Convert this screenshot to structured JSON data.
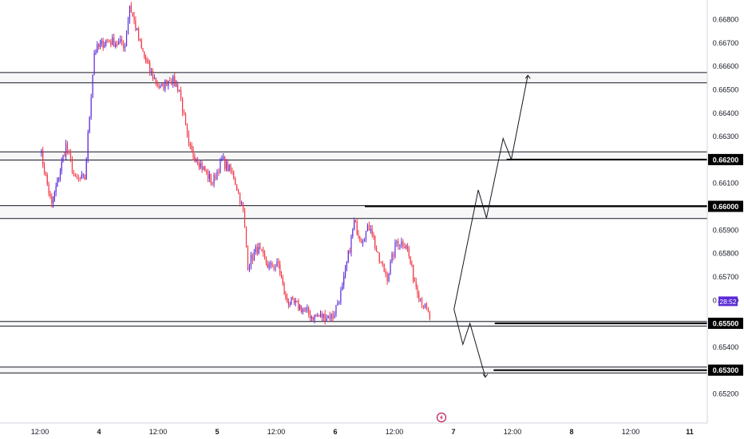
{
  "chart_data": {
    "type": "candlestick",
    "colors": {
      "up": "#5b2bd6",
      "down": "#f23645",
      "zone_border": "#131722",
      "zone_fill": "#e8e8ec",
      "projection": "#131722",
      "countdown_bg": "#5b2bd6",
      "label_bg": "#000000",
      "axis_text": "#131722",
      "divider": "#d1d4dc",
      "event_icon": "#c2185b"
    },
    "y_axis": {
      "range": [
        0.6516,
        0.6689
      ],
      "ticks": [
        "0.66800",
        "0.66700",
        "0.66600",
        "0.66500",
        "0.66400",
        "0.66300",
        "0.66200",
        "0.66100",
        "0.66000",
        "0.65900",
        "0.65800",
        "0.65700",
        "0.65600",
        "0.65500",
        "0.65400",
        "0.65300",
        "0.65200"
      ],
      "highlighted_labels": [
        "0.66200",
        "0.66000",
        "0.65500",
        "0.65300"
      ],
      "countdown": "28:52"
    },
    "x_axis": {
      "range": [
        -0.3,
        5.6
      ],
      "ticks": [
        {
          "label": "12:00",
          "x": 0
        },
        {
          "label": "4",
          "x": 0.5
        },
        {
          "label": "12:00",
          "x": 1
        },
        {
          "label": "5",
          "x": 1.5
        },
        {
          "label": "12:00",
          "x": 2
        },
        {
          "label": "6",
          "x": 2.5
        },
        {
          "label": "12:00",
          "x": 3
        },
        {
          "label": "7",
          "x": 3.5
        },
        {
          "label": "12:00",
          "x": 4
        },
        {
          "label": "8",
          "x": 4.5
        },
        {
          "label": "12:00",
          "x": 5
        },
        {
          "label": "11",
          "x": 5.5
        }
      ]
    },
    "zones": [
      {
        "top": 0.66572,
        "bottom": 0.66528
      },
      {
        "top": 0.66233,
        "bottom": 0.66198
      },
      {
        "top": 0.66003,
        "bottom": 0.65948
      },
      {
        "top": 0.65508,
        "bottom": 0.65488
      },
      {
        "top": 0.65313,
        "bottom": 0.65288
      }
    ],
    "levels": [
      {
        "price": 0.662,
        "x_start": 3.95
      },
      {
        "price": 0.66,
        "x_start": 2.75
      },
      {
        "price": 0.655,
        "x_start": 3.85
      },
      {
        "price": 0.653,
        "x_start": 3.84
      }
    ],
    "projection_path": [
      [
        3.505,
        0.6556
      ],
      [
        3.71,
        0.6607
      ],
      [
        3.78,
        0.6595
      ],
      [
        3.92,
        0.6629
      ],
      [
        3.99,
        0.662
      ],
      [
        4.13,
        0.6656
      ]
    ],
    "projection_path_down": [
      [
        3.505,
        0.6556
      ],
      [
        3.58,
        0.6541
      ],
      [
        3.64,
        0.655
      ],
      [
        3.77,
        0.6527
      ]
    ],
    "projection_arrowheads": [
      {
        "at": [
          4.13,
          0.6656
        ],
        "direction": "up"
      },
      {
        "at": [
          3.77,
          0.6527
        ],
        "direction": "down"
      }
    ],
    "anchor_points": [
      {
        "x": 0.0,
        "p": 0.6625
      },
      {
        "x": 0.1,
        "p": 0.66
      },
      {
        "x": 0.22,
        "p": 0.6626
      },
      {
        "x": 0.3,
        "p": 0.6611
      },
      {
        "x": 0.38,
        "p": 0.6612
      },
      {
        "x": 0.46,
        "p": 0.6666
      },
      {
        "x": 0.56,
        "p": 0.6671
      },
      {
        "x": 0.64,
        "p": 0.667
      },
      {
        "x": 0.72,
        "p": 0.6669
      },
      {
        "x": 0.76,
        "p": 0.6686
      },
      {
        "x": 0.86,
        "p": 0.6667
      },
      {
        "x": 0.93,
        "p": 0.6658
      },
      {
        "x": 1.02,
        "p": 0.665
      },
      {
        "x": 1.1,
        "p": 0.6655
      },
      {
        "x": 1.18,
        "p": 0.665
      },
      {
        "x": 1.26,
        "p": 0.6625
      },
      {
        "x": 1.36,
        "p": 0.6618
      },
      {
        "x": 1.46,
        "p": 0.661
      },
      {
        "x": 1.54,
        "p": 0.662
      },
      {
        "x": 1.64,
        "p": 0.6613
      },
      {
        "x": 1.72,
        "p": 0.6598
      },
      {
        "x": 1.76,
        "p": 0.6575
      },
      {
        "x": 1.84,
        "p": 0.6582
      },
      {
        "x": 1.94,
        "p": 0.6574
      },
      {
        "x": 2.02,
        "p": 0.6575
      },
      {
        "x": 2.08,
        "p": 0.656
      },
      {
        "x": 2.2,
        "p": 0.6557
      },
      {
        "x": 2.3,
        "p": 0.6553
      },
      {
        "x": 2.4,
        "p": 0.6553
      },
      {
        "x": 2.48,
        "p": 0.6553
      },
      {
        "x": 2.56,
        "p": 0.6565
      },
      {
        "x": 2.66,
        "p": 0.6593
      },
      {
        "x": 2.72,
        "p": 0.6586
      },
      {
        "x": 2.8,
        "p": 0.6592
      },
      {
        "x": 2.86,
        "p": 0.6578
      },
      {
        "x": 2.94,
        "p": 0.657
      },
      {
        "x": 3.02,
        "p": 0.6585
      },
      {
        "x": 3.1,
        "p": 0.6584
      },
      {
        "x": 3.16,
        "p": 0.657
      },
      {
        "x": 3.22,
        "p": 0.6561
      },
      {
        "x": 3.3,
        "p": 0.6552
      }
    ],
    "seed": 7
  }
}
